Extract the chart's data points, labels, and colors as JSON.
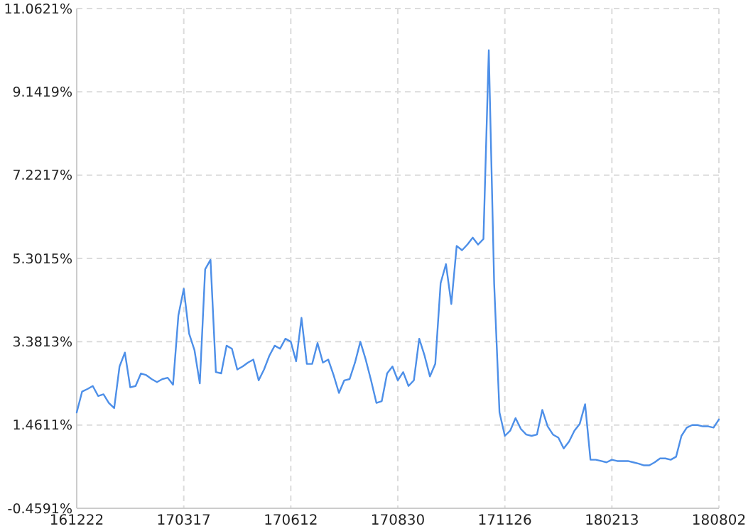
{
  "chart_data": {
    "type": "line",
    "categories": [
      "161222",
      null,
      null,
      null,
      null,
      null,
      null,
      null,
      null,
      null,
      null,
      null,
      null,
      null,
      null,
      null,
      null,
      null,
      null,
      null,
      "170317",
      null,
      null,
      null,
      null,
      null,
      null,
      null,
      null,
      null,
      null,
      null,
      null,
      null,
      null,
      null,
      null,
      null,
      null,
      null,
      "170612",
      null,
      null,
      null,
      null,
      null,
      null,
      null,
      null,
      null,
      null,
      null,
      null,
      null,
      null,
      null,
      null,
      null,
      null,
      null,
      "170830",
      null,
      null,
      null,
      null,
      null,
      null,
      null,
      null,
      null,
      null,
      null,
      null,
      null,
      null,
      null,
      null,
      null,
      null,
      null,
      "171126",
      null,
      null,
      null,
      null,
      null,
      null,
      null,
      null,
      null,
      null,
      null,
      null,
      null,
      null,
      null,
      null,
      null,
      null,
      null,
      "180213",
      null,
      null,
      null,
      null,
      null,
      null,
      null,
      null,
      null,
      null,
      null,
      null,
      null,
      null,
      null,
      null,
      null,
      null,
      null,
      "180802"
    ],
    "series": [
      {
        "color": "#4d8fe8",
        "values": [
          1.75,
          2.23,
          2.29,
          2.36,
          2.13,
          2.17,
          1.97,
          1.85,
          2.81,
          3.13,
          2.33,
          2.36,
          2.65,
          2.61,
          2.52,
          2.45,
          2.52,
          2.55,
          2.39,
          3.99,
          4.6,
          3.57,
          3.19,
          2.42,
          5.05,
          5.27,
          2.68,
          2.65,
          3.29,
          3.22,
          2.74,
          2.81,
          2.9,
          2.97,
          2.49,
          2.74,
          3.06,
          3.29,
          3.22,
          3.45,
          3.38,
          2.93,
          3.93,
          2.87,
          2.87,
          3.35,
          2.9,
          2.97,
          2.61,
          2.2,
          2.49,
          2.52,
          2.9,
          3.38,
          2.97,
          2.49,
          1.97,
          2.01,
          2.65,
          2.81,
          2.49,
          2.68,
          2.36,
          2.49,
          3.45,
          3.06,
          2.58,
          2.87,
          4.73,
          5.17,
          4.25,
          5.59,
          5.49,
          5.62,
          5.78,
          5.62,
          5.75,
          10.1,
          4.73,
          1.75,
          1.21,
          1.33,
          1.62,
          1.37,
          1.24,
          1.21,
          1.24,
          1.81,
          1.43,
          1.24,
          1.17,
          0.92,
          1.08,
          1.33,
          1.49,
          1.94,
          0.66,
          0.66,
          0.63,
          0.6,
          0.66,
          0.63,
          0.63,
          0.63,
          0.6,
          0.57,
          0.53,
          0.53,
          0.6,
          0.69,
          0.69,
          0.66,
          0.73,
          1.21,
          1.4,
          1.46,
          1.46,
          1.43,
          1.43,
          1.4,
          1.59
        ]
      }
    ],
    "ylim": [
      -0.4591,
      11.0621
    ],
    "yticks": [
      {
        "value": -0.4591,
        "label": "-0.4591%"
      },
      {
        "value": 1.4611,
        "label": "1.4611%"
      },
      {
        "value": 3.3813,
        "label": "3.3813%"
      },
      {
        "value": 5.3015,
        "label": "5.3015%"
      },
      {
        "value": 7.2217,
        "label": "7.2217%"
      },
      {
        "value": 9.1419,
        "label": "9.1419%"
      },
      {
        "value": 11.0621,
        "label": "11.0621%"
      }
    ],
    "grid": true,
    "marker": "none",
    "line_style": "solid"
  }
}
